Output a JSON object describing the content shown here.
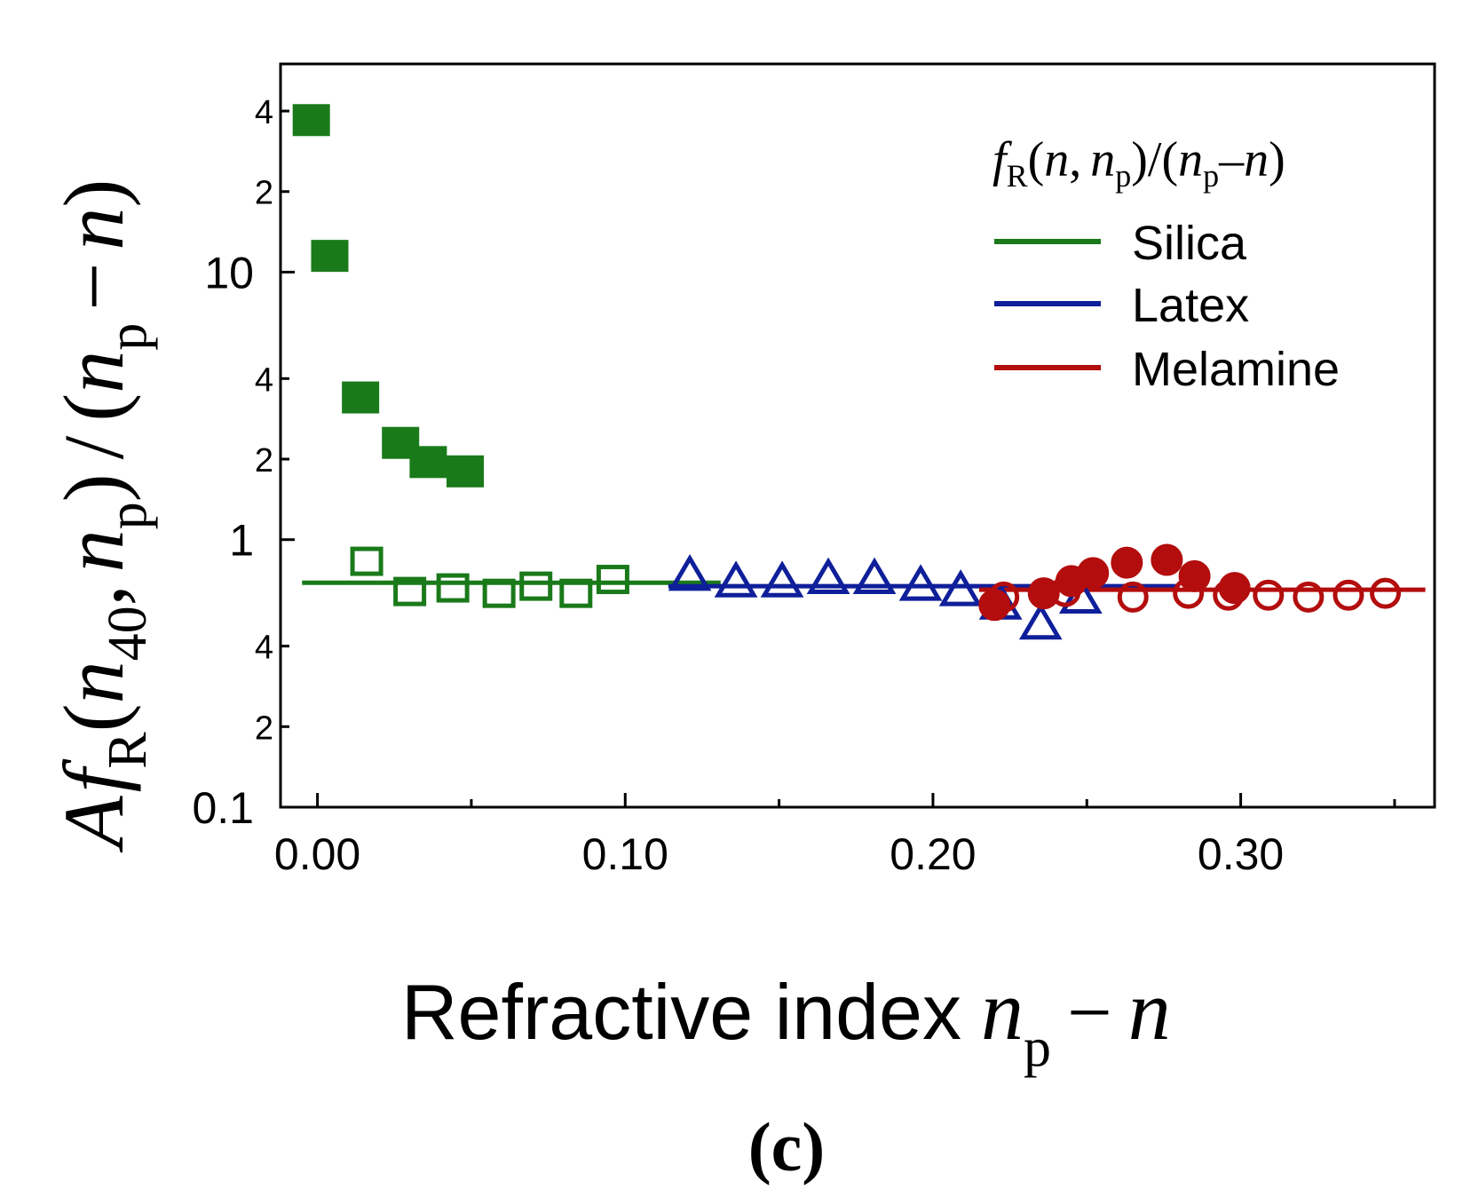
{
  "chart_data": {
    "type": "scatter",
    "panel_label": "(c)",
    "xlabel": {
      "text": "Refractive index",
      "var": "n",
      "sub": "p",
      "minus": "−",
      "var2": "n"
    },
    "ylabel": {
      "A": "A",
      "f": "f",
      "fsub": "R",
      "open": "(",
      "n40": "n",
      "n40sub": "40",
      "comma": ",",
      "np": "n",
      "npsub": "p",
      "close": ")",
      "slash": "/",
      "open2": "(",
      "np2": "n",
      "np2sub": "p",
      "minus": "−",
      "n": "n",
      "close2": ")"
    },
    "x_range": [
      -0.012,
      0.363
    ],
    "y_range": [
      0.1,
      60
    ],
    "y_scale": "log",
    "x_ticks": [
      {
        "value": 0.0,
        "label": "0.00"
      },
      {
        "value": 0.1,
        "label": "0.10"
      },
      {
        "value": 0.2,
        "label": "0.20"
      },
      {
        "value": 0.3,
        "label": "0.30"
      }
    ],
    "x_minor_ticks": [
      0.05,
      0.15,
      0.25,
      0.35
    ],
    "y_major_ticks": [
      {
        "value": 0.1,
        "label": "0.1"
      },
      {
        "value": 1,
        "label": "1"
      },
      {
        "value": 10,
        "label": "10"
      }
    ],
    "y_minor_ticks": [
      {
        "value": 0.2,
        "label": "2"
      },
      {
        "value": 0.4,
        "label": "4"
      },
      {
        "value": 2,
        "label": "2"
      },
      {
        "value": 4,
        "label": "4"
      },
      {
        "value": 20,
        "label": "2"
      },
      {
        "value": 40,
        "label": "4"
      }
    ],
    "legend": {
      "title": {
        "f": "f",
        "fsub": "R",
        "open": "(",
        "n": "n",
        "comma": ",",
        "np": "n",
        "npsub": "p",
        "mid": ")/(",
        "np2": "n",
        "np2sub": "p",
        "dash": "–",
        "n2": "n",
        "close": ")"
      },
      "position": "top-right",
      "entries": [
        {
          "name": "Silica",
          "color": "#1a7a1a"
        },
        {
          "name": "Latex",
          "color": "#0f1f9a"
        },
        {
          "name": "Melamine",
          "color": "#b30d0d"
        }
      ]
    },
    "series": [
      {
        "name": "Silica (filled)",
        "marker": "square-filled",
        "color": "#1a7a1a",
        "x": [
          -0.002,
          0.004,
          0.014,
          0.027,
          0.036,
          0.048
        ],
        "y": [
          37,
          11.5,
          3.4,
          2.3,
          1.95,
          1.8
        ]
      },
      {
        "name": "Silica",
        "marker": "square-open",
        "color": "#1a7a1a",
        "x": [
          0.016,
          0.03,
          0.044,
          0.059,
          0.071,
          0.084,
          0.096
        ],
        "y": [
          0.83,
          0.64,
          0.66,
          0.63,
          0.67,
          0.63,
          0.71
        ]
      },
      {
        "name": "Latex",
        "marker": "triangle-open",
        "color": "#0f1f9a",
        "x": [
          0.121,
          0.136,
          0.151,
          0.166,
          0.181,
          0.196,
          0.209,
          0.222,
          0.235,
          0.248
        ],
        "y": [
          0.73,
          0.69,
          0.69,
          0.71,
          0.71,
          0.67,
          0.64,
          0.57,
          0.48,
          0.6
        ]
      },
      {
        "name": "Melamine (filled)",
        "marker": "circle-filled",
        "color": "#b30d0d",
        "x": [
          0.22,
          0.236,
          0.245,
          0.252,
          0.263,
          0.276,
          0.285,
          0.298
        ],
        "y": [
          0.57,
          0.63,
          0.7,
          0.75,
          0.82,
          0.84,
          0.73,
          0.66
        ]
      },
      {
        "name": "Melamine",
        "marker": "circle-open",
        "color": "#b30d0d",
        "x": [
          0.223,
          0.243,
          0.265,
          0.283,
          0.296,
          0.309,
          0.322,
          0.335,
          0.347
        ],
        "y": [
          0.61,
          0.64,
          0.61,
          0.63,
          0.62,
          0.62,
          0.61,
          0.62,
          0.63
        ]
      }
    ],
    "fit_lines": [
      {
        "name": "Silica",
        "color": "#1a7a1a",
        "x": [
          -0.005,
          0.131
        ],
        "y": [
          0.69,
          0.69
        ]
      },
      {
        "name": "Latex",
        "color": "#0f1f9a",
        "x": [
          0.114,
          0.28
        ],
        "y": [
          0.67,
          0.67
        ]
      },
      {
        "name": "Melamine",
        "color": "#b30d0d",
        "x": [
          0.215,
          0.36
        ],
        "y": [
          0.65,
          0.65
        ]
      }
    ]
  }
}
